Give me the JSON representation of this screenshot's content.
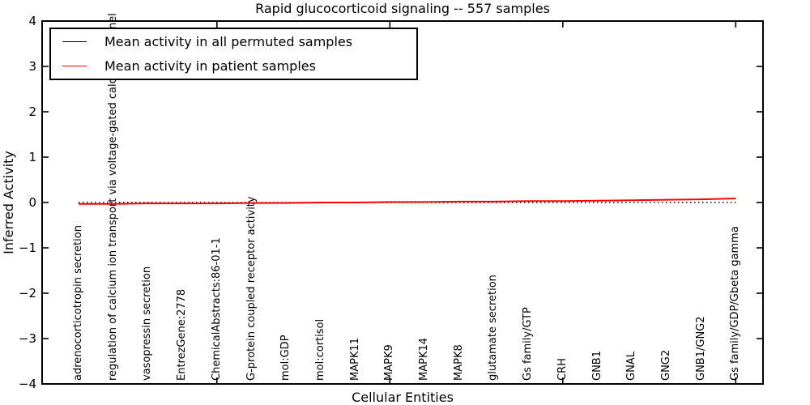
{
  "chart_data": {
    "type": "line",
    "title": "Rapid glucocorticoid signaling -- 557 samples",
    "xlabel": "Cellular Entities",
    "ylabel": "Inferred Activity",
    "ylim": [
      -4,
      4
    ],
    "yticks": [
      4,
      3,
      2,
      1,
      0,
      -1,
      -2,
      -3,
      -4
    ],
    "x_tick_indices": [
      4,
      9,
      14,
      19
    ],
    "grid": false,
    "legend_position": "upper left",
    "categories": [
      "adrenocorticotropin secretion",
      "regulation of calcium ion transport via voltage-gated calcium channel",
      "vasopressin secretion",
      "EntrezGene:2778",
      "ChemicalAbstracts:86-01-1",
      "G-protein coupled receptor activity",
      "mol:GDP",
      "mol:cortisol",
      "MAPK11",
      "MAPK9",
      "MAPK14",
      "MAPK8",
      "glutamate secretion",
      "Gs family/GTP",
      "CRH",
      "GNB1",
      "GNAL",
      "GNG2",
      "GNB1/GNG2",
      "Gs family/GDP/Gbeta gamma"
    ],
    "series": [
      {
        "name": "Mean activity in all permuted samples",
        "color": "#000000",
        "line_style": "dotted",
        "values": [
          0.0,
          0.0,
          0.0,
          0.0,
          0.0,
          0.0,
          0.0,
          0.0,
          0.0,
          0.0,
          0.0,
          0.0,
          0.0,
          0.0,
          0.0,
          0.0,
          0.0,
          0.0,
          0.0,
          0.0
        ]
      },
      {
        "name": "Mean activity in patient samples",
        "color": "#ff0000",
        "line_style": "solid",
        "values": [
          -0.03,
          -0.03,
          -0.02,
          -0.02,
          -0.02,
          -0.01,
          -0.01,
          0.0,
          0.0,
          0.01,
          0.01,
          0.02,
          0.02,
          0.03,
          0.03,
          0.04,
          0.05,
          0.06,
          0.07,
          0.09
        ]
      }
    ]
  }
}
